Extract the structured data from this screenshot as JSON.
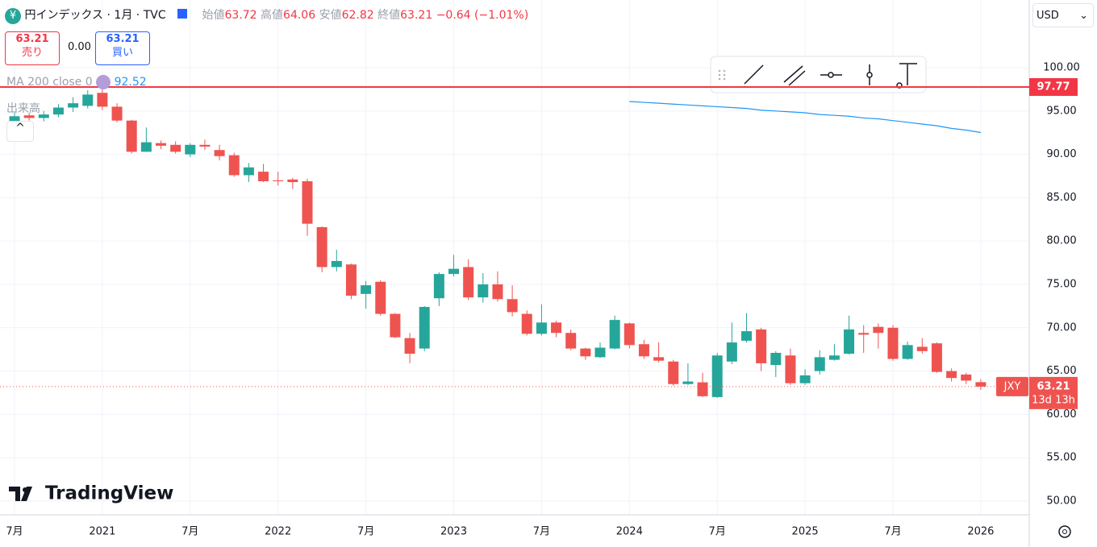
{
  "chart_data": {
    "type": "candlestick",
    "title": "円インデックス",
    "interval": "1月",
    "source": "TVC",
    "categories": [
      "7月",
      null,
      null,
      null,
      null,
      null,
      "2021",
      null,
      null,
      null,
      null,
      null,
      "7月",
      null,
      null,
      null,
      null,
      null,
      "2022",
      null,
      null,
      null,
      null,
      null,
      "7月",
      null,
      null,
      null,
      null,
      null,
      "2023",
      null,
      null,
      null,
      null,
      null,
      "7月",
      null,
      null,
      null,
      null,
      null,
      "2024",
      null,
      null,
      null,
      null,
      null,
      "7月",
      null,
      null,
      null,
      null,
      null,
      "2025",
      null,
      null,
      null,
      null,
      null,
      "7月",
      null,
      null,
      null,
      null,
      null,
      "2026"
    ],
    "open": [
      93.6,
      94.5,
      94.2,
      94.6,
      95.4,
      95.6,
      97.1,
      95.5,
      93.9,
      90.3,
      91.3,
      91.1,
      90.0,
      91.1,
      90.5,
      89.9,
      87.6,
      88.0,
      87.0,
      87.1,
      86.9,
      81.6,
      77.0,
      77.3,
      73.9,
      75.3,
      71.6,
      68.8,
      67.6,
      73.4,
      76.2,
      77.0,
      73.5,
      75.0,
      73.3,
      71.6,
      69.3,
      70.6,
      69.4,
      67.6,
      66.6,
      67.6,
      70.5,
      68.1,
      66.6,
      66.1,
      63.5,
      63.7,
      62.0,
      66.1,
      68.5,
      69.8,
      65.7,
      66.8,
      63.6,
      65.0,
      66.3,
      67.0,
      69.4,
      70.1,
      70.0,
      66.4,
      67.8,
      68.2,
      65.0,
      64.6,
      63.72
    ],
    "high": [
      94.8,
      94.8,
      95.0,
      95.8,
      96.6,
      97.4,
      97.7,
      95.9,
      94.0,
      93.1,
      91.6,
      91.5,
      91.3,
      91.7,
      91.1,
      90.2,
      89.0,
      88.9,
      88.0,
      87.3,
      87.2,
      81.7,
      79.0,
      77.4,
      75.4,
      75.5,
      71.7,
      69.4,
      72.5,
      76.4,
      78.4,
      77.9,
      76.3,
      76.5,
      74.9,
      72.0,
      72.7,
      70.8,
      69.8,
      67.7,
      68.3,
      71.4,
      70.6,
      68.6,
      68.3,
      66.3,
      65.9,
      64.8,
      67.1,
      70.6,
      71.7,
      70.0,
      67.3,
      67.6,
      65.2,
      67.4,
      68.1,
      71.4,
      70.3,
      70.5,
      70.3,
      68.4,
      68.8,
      68.3,
      65.3,
      64.8,
      64.06
    ],
    "low": [
      93.3,
      93.9,
      93.8,
      94.3,
      94.9,
      95.3,
      95.1,
      93.7,
      90.1,
      90.3,
      90.6,
      90.1,
      89.7,
      90.5,
      89.3,
      87.4,
      86.8,
      86.8,
      86.4,
      86.0,
      80.6,
      76.4,
      76.5,
      73.3,
      72.2,
      71.4,
      68.8,
      65.9,
      67.3,
      72.5,
      75.9,
      73.2,
      72.9,
      73.0,
      71.3,
      69.1,
      69.1,
      68.9,
      67.4,
      66.3,
      66.5,
      67.5,
      67.6,
      66.4,
      66.0,
      63.3,
      63.4,
      62.0,
      61.9,
      65.8,
      68.3,
      65.0,
      64.3,
      63.4,
      63.4,
      64.6,
      66.2,
      66.9,
      67.1,
      67.6,
      66.2,
      66.3,
      67.0,
      64.8,
      63.8,
      63.5,
      62.82
    ],
    "close": [
      94.4,
      94.2,
      94.6,
      95.4,
      95.9,
      96.9,
      95.5,
      93.9,
      90.3,
      91.4,
      91.0,
      90.3,
      91.1,
      90.9,
      89.8,
      87.6,
      88.5,
      86.9,
      86.9,
      86.8,
      82.0,
      77.0,
      77.7,
      73.7,
      74.9,
      71.6,
      68.9,
      67.0,
      72.4,
      76.2,
      76.8,
      73.5,
      75.0,
      73.3,
      71.8,
      69.3,
      70.6,
      69.4,
      67.6,
      66.7,
      67.7,
      70.9,
      68.0,
      66.7,
      66.2,
      63.5,
      63.8,
      62.1,
      66.8,
      68.3,
      69.6,
      65.9,
      67.1,
      63.6,
      64.5,
      66.6,
      66.8,
      69.8,
      69.2,
      69.4,
      66.4,
      68.0,
      67.3,
      64.9,
      64.2,
      63.9,
      63.21
    ],
    "up_color": "#26a69a",
    "down_color": "#ef5350",
    "series": [
      {
        "name": "MA 200 close 0",
        "color": "#2196f3",
        "values": [
          null,
          null,
          null,
          null,
          null,
          null,
          null,
          null,
          null,
          null,
          null,
          null,
          null,
          null,
          null,
          null,
          null,
          null,
          null,
          null,
          null,
          null,
          null,
          null,
          null,
          null,
          null,
          null,
          null,
          null,
          null,
          null,
          null,
          null,
          null,
          null,
          null,
          null,
          null,
          null,
          null,
          null,
          96.1,
          96.0,
          95.9,
          95.8,
          95.7,
          95.6,
          95.5,
          95.4,
          95.3,
          95.1,
          95.0,
          94.9,
          94.8,
          94.6,
          94.5,
          94.4,
          94.2,
          94.1,
          93.9,
          93.7,
          93.5,
          93.3,
          93.0,
          92.8,
          92.52
        ]
      }
    ],
    "hline": {
      "value": 97.77,
      "color": "#f23645"
    },
    "ylim": [
      48.42,
      107.81
    ],
    "yticks": [
      {
        "value": 50,
        "label": "50.00"
      },
      {
        "value": 55,
        "label": "55.00"
      },
      {
        "value": 60,
        "label": "60.00"
      },
      {
        "value": 65,
        "label": "65.00"
      },
      {
        "value": 70,
        "label": "70.00"
      },
      {
        "value": 75,
        "label": "75.00"
      },
      {
        "value": 80,
        "label": "80.00"
      },
      {
        "value": 85,
        "label": "85.00"
      },
      {
        "value": 90,
        "label": "90.00"
      },
      {
        "value": 95,
        "label": "95.00"
      },
      {
        "value": 100,
        "label": "100.00"
      }
    ],
    "grid": true,
    "ohlc_labels": {
      "open": "始値",
      "high": "高値",
      "low": "安値",
      "close": "終値"
    },
    "change": "−0.64 (−1.01%)",
    "symbol": "JXY",
    "countdown": "13d 13h"
  },
  "ui": {
    "sell": "売り",
    "spread": "0.00",
    "buy": "買い",
    "volume": "出来高",
    "currency": "USD",
    "logo": "TradingView"
  }
}
